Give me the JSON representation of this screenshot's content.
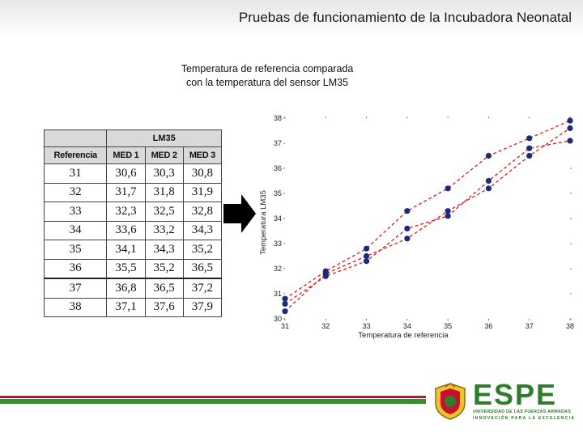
{
  "slide": {
    "title": "Pruebas de funcionamiento de la Incubadora Neonatal",
    "subtitle_line1": "Temperatura de referencia comparada",
    "subtitle_line2": "con la temperatura del sensor LM35"
  },
  "table": {
    "group_header": "LM35",
    "columns": [
      "Referencia",
      "MED 1",
      "MED 2",
      "MED 3"
    ],
    "rows": [
      [
        "31",
        "30,6",
        "30,3",
        "30,8"
      ],
      [
        "32",
        "31,7",
        "31,8",
        "31,9"
      ],
      [
        "33",
        "32,3",
        "32,5",
        "32,8"
      ],
      [
        "34",
        "33,6",
        "33,2",
        "34,3"
      ],
      [
        "35",
        "34,1",
        "34,3",
        "35,2"
      ],
      [
        "36",
        "35,5",
        "35,2",
        "36,5"
      ],
      [
        "37",
        "36,8",
        "36,5",
        "37,2"
      ],
      [
        "38",
        "37,1",
        "37,6",
        "37,9"
      ]
    ]
  },
  "logo": {
    "name": "ESPE",
    "line1": "UNIVERSIDAD DE LAS FUERZAS ARMADAS",
    "line2": "INNOVACIÓN PARA LA EXCELENCIA"
  },
  "colors": {
    "series": "#d8201c",
    "marker": "#1f2a7a",
    "bar_red": "#c8102e",
    "bar_green": "#3c8a2e"
  },
  "chart_data": {
    "type": "line",
    "title": "",
    "xlabel": "Temperatura de referencia",
    "ylabel": "Temperatura LM35",
    "x": [
      31,
      32,
      33,
      34,
      35,
      36,
      37,
      38
    ],
    "xlim": [
      31,
      38
    ],
    "ylim": [
      30,
      38
    ],
    "x_ticks": [
      "31",
      "32",
      "33",
      "34",
      "35",
      "36",
      "37",
      "38"
    ],
    "y_ticks": [
      "30",
      "31",
      "32",
      "33",
      "34",
      "35",
      "36",
      "37",
      "38"
    ],
    "grid": false,
    "series": [
      {
        "values": [
          30.6,
          31.7,
          32.3,
          33.6,
          34.1,
          35.5,
          36.8,
          37.1
        ]
      },
      {
        "values": [
          30.3,
          31.8,
          32.5,
          33.2,
          34.3,
          35.2,
          36.5,
          37.6
        ]
      },
      {
        "values": [
          30.8,
          31.9,
          32.8,
          34.3,
          35.2,
          36.5,
          37.2,
          37.9
        ]
      }
    ]
  }
}
